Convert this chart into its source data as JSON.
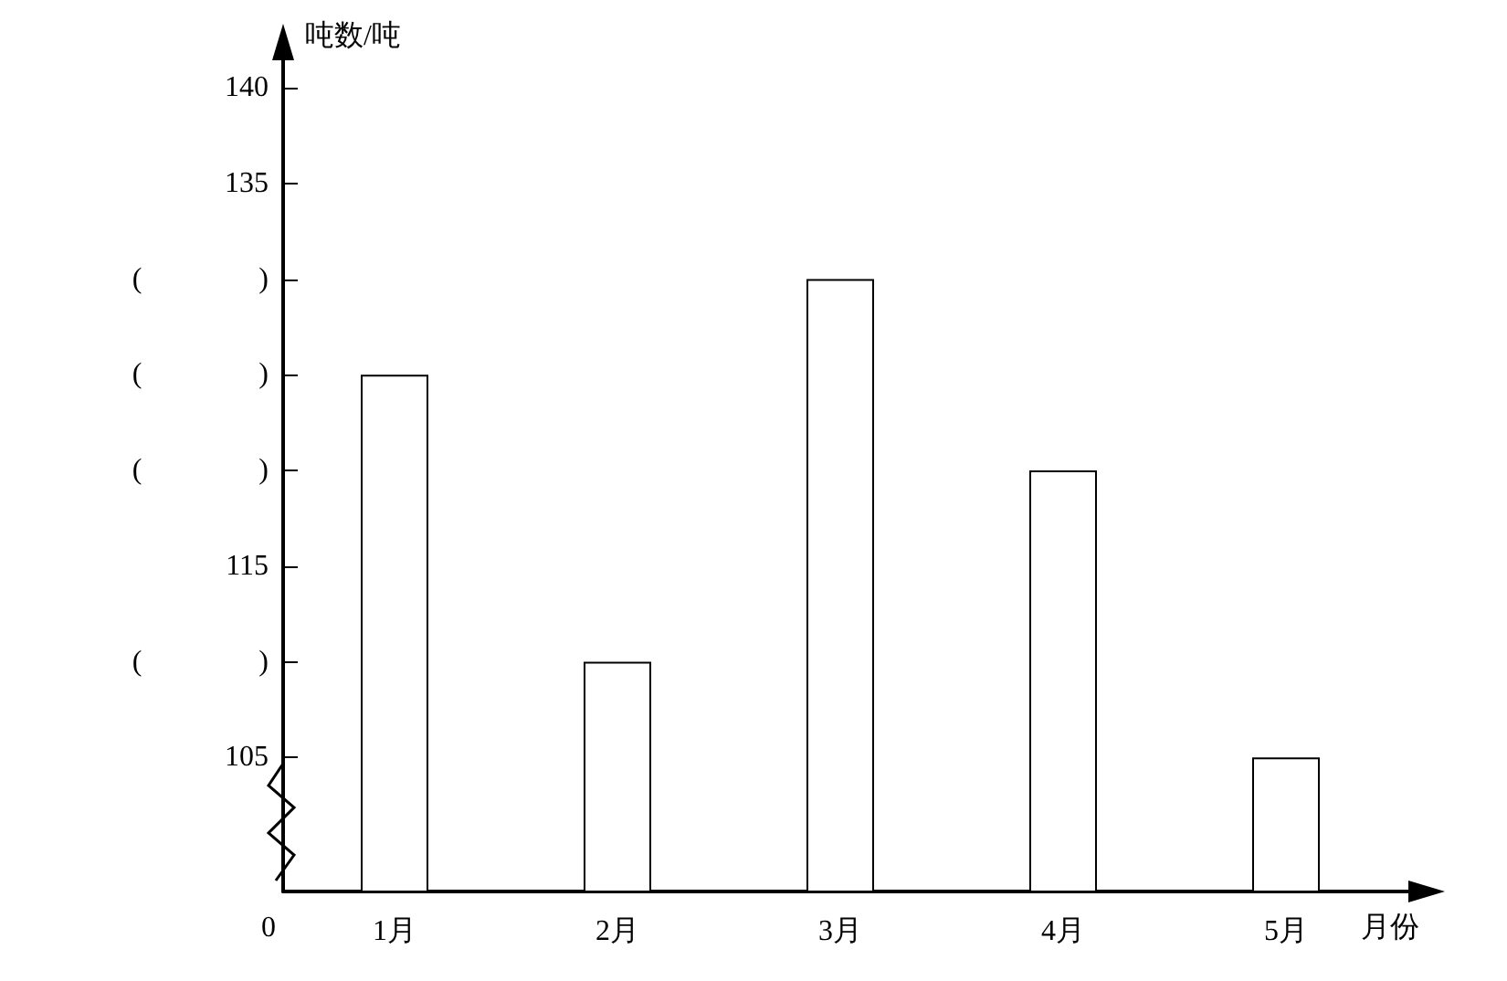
{
  "chart_data": {
    "type": "bar",
    "xlabel": "月份",
    "ylabel": "吨数/吨",
    "categories": [
      "1月",
      "2月",
      "3月",
      "4月",
      "5月"
    ],
    "values": [
      125,
      110,
      130,
      120,
      105
    ],
    "color": "#ffffff",
    "ylim": [
      98,
      140
    ],
    "yticks": [
      105,
      {
        "value": 110,
        "label": "(                )"
      },
      115,
      {
        "value": 120,
        "label": "(                )"
      },
      {
        "value": 125,
        "label": "(                )"
      },
      {
        "value": 130,
        "label": "(                )"
      },
      135,
      140
    ],
    "annotations": [
      "0"
    ],
    "grid": false
  }
}
